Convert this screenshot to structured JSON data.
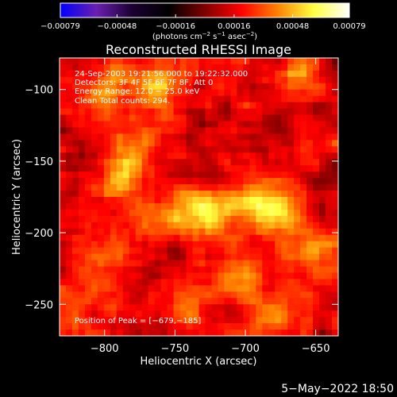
{
  "chart_data": {
    "type": "heatmap",
    "title": "Reconstructed RHESSI Image",
    "xlabel": "Heliocentric X (arcsec)",
    "ylabel": "Heliocentric Y (arcsec)",
    "xlim": [
      -832,
      -634
    ],
    "ylim": [
      -272,
      -78
    ],
    "x_ticks": [
      {
        "value": -800,
        "label": "−800"
      },
      {
        "value": -750,
        "label": "−750"
      },
      {
        "value": -700,
        "label": "−700"
      },
      {
        "value": -650,
        "label": "−650"
      }
    ],
    "y_ticks": [
      {
        "value": -100,
        "label": "−100"
      },
      {
        "value": -150,
        "label": "−150"
      },
      {
        "value": -200,
        "label": "−200"
      },
      {
        "value": -250,
        "label": "−250"
      }
    ],
    "colorbar": {
      "range": [
        -0.00079,
        0.00079
      ],
      "tick_values": [
        -0.00079,
        -0.00048,
        -0.00016,
        0.00016,
        0.00048,
        0.00079
      ],
      "tick_labels": [
        "−0.00079",
        "−0.00048",
        "−0.00016",
        "0.00016",
        "0.00048",
        "0.00079"
      ],
      "unit_text": "(photons cm",
      "unit_sup1": "−2",
      "unit_mid1": " s",
      "unit_sup2": "−1",
      "unit_mid2": " asec",
      "unit_sup3": "−2",
      "unit_end": ")"
    },
    "annotations": {
      "time_range": "24-Sep-2003 19:21:56.000 to 19:22:32.000",
      "detectors": "Detectors: 3F 4F 5F 6F 7F 8F, Att 0",
      "energy_range": "Energy Range: 12.0 − 25.0 keV",
      "clean_counts": "Clean    Total counts: 294.",
      "peak_position": "Position of Peak = [−679,−185]"
    },
    "peak": {
      "x": -679,
      "y": -185
    },
    "bright_sources": [
      {
        "x": -760,
        "y": -95,
        "strength": 0.85
      },
      {
        "x": -800,
        "y": -100,
        "strength": 0.6
      },
      {
        "x": -660,
        "y": -90,
        "strength": 0.55
      },
      {
        "x": -780,
        "y": -145,
        "strength": 0.55
      },
      {
        "x": -730,
        "y": -185,
        "strength": 0.95
      },
      {
        "x": -700,
        "y": -180,
        "strength": 0.7
      },
      {
        "x": -679,
        "y": -185,
        "strength": 1.0
      },
      {
        "x": -760,
        "y": -190,
        "strength": 0.55
      },
      {
        "x": -650,
        "y": -215,
        "strength": 0.75
      },
      {
        "x": -700,
        "y": -230,
        "strength": 0.6
      },
      {
        "x": -800,
        "y": -220,
        "strength": 0.5
      },
      {
        "x": -790,
        "y": -165,
        "strength": 0.5
      },
      {
        "x": -740,
        "y": -245,
        "strength": 0.5
      },
      {
        "x": -680,
        "y": -260,
        "strength": 0.55
      },
      {
        "x": -820,
        "y": -260,
        "strength": 0.45
      }
    ],
    "colors": {
      "background": "#000000",
      "foreground": "#ffffff",
      "colormap": [
        "#0000ff",
        "#6a1fb0",
        "#1a0030",
        "#000000",
        "#800000",
        "#ff0000",
        "#ff8000",
        "#ffff40",
        "#ffffff"
      ]
    }
  },
  "footer": {
    "date_time": "5−May−2022 18:50"
  }
}
